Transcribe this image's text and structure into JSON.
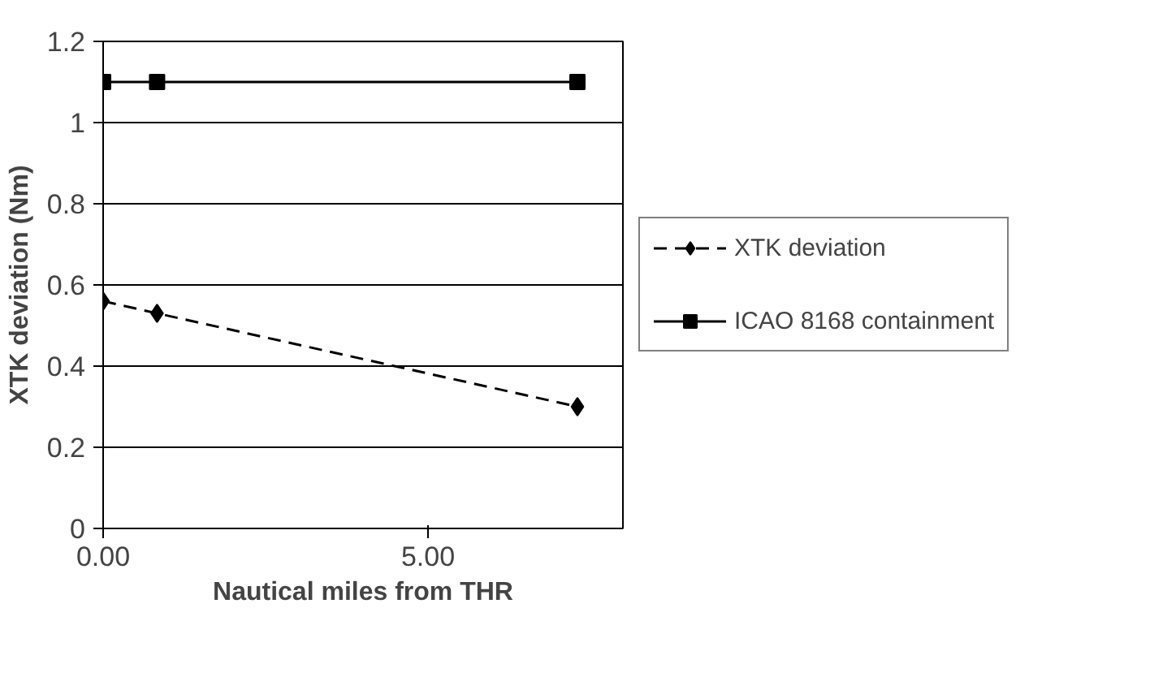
{
  "chart_data": {
    "type": "line",
    "xlabel": "Nautical miles from THR",
    "ylabel": "XTK deviation (Nm)",
    "xlim": [
      0,
      8
    ],
    "xticks": [
      {
        "value": 0,
        "label": "0.00"
      },
      {
        "value": 5,
        "label": "5.00"
      }
    ],
    "ylim": [
      0,
      1.2
    ],
    "yticks": [
      0,
      0.2,
      0.4,
      0.6,
      0.8,
      1,
      1.2
    ],
    "grid": "y",
    "legend": "right",
    "series": [
      {
        "name": "XTK deviation",
        "color": "#000000",
        "x": [
          0,
          0.83,
          7.3
        ],
        "values": [
          0.56,
          0.53,
          0.3
        ],
        "marker": "diamond",
        "line_style": "dashed"
      },
      {
        "name": "ICAO 8168 containment",
        "color": "#000000",
        "x": [
          0,
          0.83,
          7.3
        ],
        "values": [
          1.1,
          1.1,
          1.1
        ],
        "marker": "square",
        "line_style": "solid"
      }
    ]
  }
}
